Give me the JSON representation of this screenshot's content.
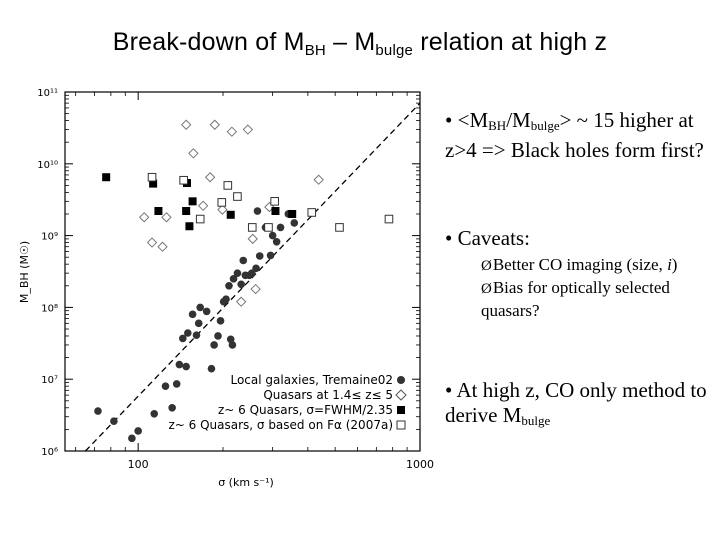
{
  "slide": {
    "title_main": "Break-down of M",
    "title_sub1": "BH",
    "title_mid": " – M",
    "title_sub2": "bulge",
    "title_end": " relation at high z"
  },
  "bullets": {
    "b1_prefix": "• <M",
    "b1_sub1": "BH",
    "b1_mid": "/M",
    "b1_sub2": "bulge",
    "b1_rest": "> ~ 15 higher at z>4 => Black holes form first?",
    "b2": "• Caveats:",
    "arrow": "Ø",
    "sub1_a": "Better CO imaging (size, ",
    "sub1_i": "i",
    "sub1_b": ")",
    "sub2": "Bias for optically selected quasars?",
    "b3_text": "• At high z, CO only method to derive M",
    "b3_sub": "bulge"
  },
  "chart_data": {
    "type": "scatter",
    "x_scale": "log",
    "y_scale": "log",
    "xlim": [
      55,
      1000
    ],
    "ylim": [
      1000000,
      100000000000
    ],
    "xlabel": "σ (km s⁻¹)",
    "ylabel": "M_BH (M☉)",
    "x_ticks": [
      100,
      1000
    ],
    "y_ticks": [
      1000000,
      10000000,
      100000000,
      1000000000,
      10000000000,
      100000000000
    ],
    "x_tick_labels": [
      "100",
      "1000"
    ],
    "y_tick_labels": [
      "10⁶",
      "10⁷",
      "10⁸",
      "10⁹",
      "10¹⁰",
      "10¹¹"
    ],
    "grid": false,
    "legend_position": "bottom-right",
    "fit_line": {
      "style": "dashed",
      "points": [
        [
          65,
          1000000
        ],
        [
          1000,
          70000000000
        ]
      ]
    },
    "series": [
      {
        "name": "Local galaxies, Tremaine02",
        "marker": "filled-circle",
        "points": [
          [
            72,
            3600000
          ],
          [
            82,
            2600000
          ],
          [
            95,
            1500000
          ],
          [
            100,
            1900000
          ],
          [
            114,
            3300000
          ],
          [
            132,
            4000000
          ],
          [
            125,
            8000000
          ],
          [
            137,
            8600000
          ],
          [
            140,
            16000000
          ],
          [
            148,
            15000000
          ],
          [
            144,
            37000000
          ],
          [
            150,
            44000000
          ],
          [
            161,
            41000000
          ],
          [
            156,
            80000000
          ],
          [
            164,
            60000000
          ],
          [
            166,
            100000000
          ],
          [
            175,
            88000000
          ],
          [
            182,
            14000000
          ],
          [
            186,
            30000000
          ],
          [
            192,
            40000000
          ],
          [
            196,
            65000000
          ],
          [
            201,
            120000000
          ],
          [
            205,
            130000000
          ],
          [
            210,
            200000000
          ],
          [
            213,
            36000000
          ],
          [
            216,
            30000000
          ],
          [
            218,
            250000000
          ],
          [
            225,
            300000000
          ],
          [
            232,
            210000000
          ],
          [
            236,
            450000000
          ],
          [
            240,
            280000000
          ],
          [
            248,
            280000000
          ],
          [
            253,
            300000000
          ],
          [
            262,
            350000000
          ],
          [
            265,
            2200000000
          ],
          [
            270,
            520000000
          ],
          [
            283,
            1300000000
          ],
          [
            295,
            530000000
          ],
          [
            300,
            1000000000
          ],
          [
            310,
            820000000
          ],
          [
            320,
            1300000000
          ],
          [
            341,
            2000000000
          ],
          [
            358,
            1500000000
          ]
        ]
      },
      {
        "name": "Quasars at 1.4≤ z≤ 5",
        "marker": "open-diamond",
        "points": [
          [
            105,
            1800000000
          ],
          [
            112,
            800000000
          ],
          [
            122,
            700000000
          ],
          [
            126,
            1800000000
          ],
          [
            148,
            35000000000
          ],
          [
            157,
            14000000000
          ],
          [
            170,
            2600000000
          ],
          [
            180,
            6500000000
          ],
          [
            187,
            35000000000
          ],
          [
            199,
            2300000000
          ],
          [
            215,
            28000000000
          ],
          [
            232,
            120000000
          ],
          [
            245,
            30000000000
          ],
          [
            255,
            900000000
          ],
          [
            261,
            180000000
          ],
          [
            292,
            2500000000
          ],
          [
            437,
            6000000000
          ]
        ]
      },
      {
        "name": "z~ 6 Quasars, σ=FWHM/2.35",
        "marker": "filled-square",
        "points": [
          [
            77,
            6500000000
          ],
          [
            113,
            5300000000
          ],
          [
            118,
            2200000000
          ],
          [
            148,
            2200000000
          ],
          [
            149,
            5400000000
          ],
          [
            152,
            1350000000
          ],
          [
            156,
            3000000000
          ],
          [
            213,
            1950000000
          ],
          [
            307,
            2200000000
          ],
          [
            352,
            2000000000
          ]
        ]
      },
      {
        "name": "z~ 6 Quasars, σ based on Fα (2007a)",
        "marker": "open-square",
        "points": [
          [
            112,
            6500000000
          ],
          [
            145,
            5900000000
          ],
          [
            166,
            1700000000
          ],
          [
            198,
            2900000000
          ],
          [
            208,
            5000000000
          ],
          [
            225,
            3500000000
          ],
          [
            254,
            1300000000
          ],
          [
            290,
            1300000000
          ],
          [
            305,
            3000000000
          ],
          [
            413,
            2100000000
          ],
          [
            518,
            1300000000
          ],
          [
            776,
            1700000000
          ]
        ]
      }
    ]
  }
}
